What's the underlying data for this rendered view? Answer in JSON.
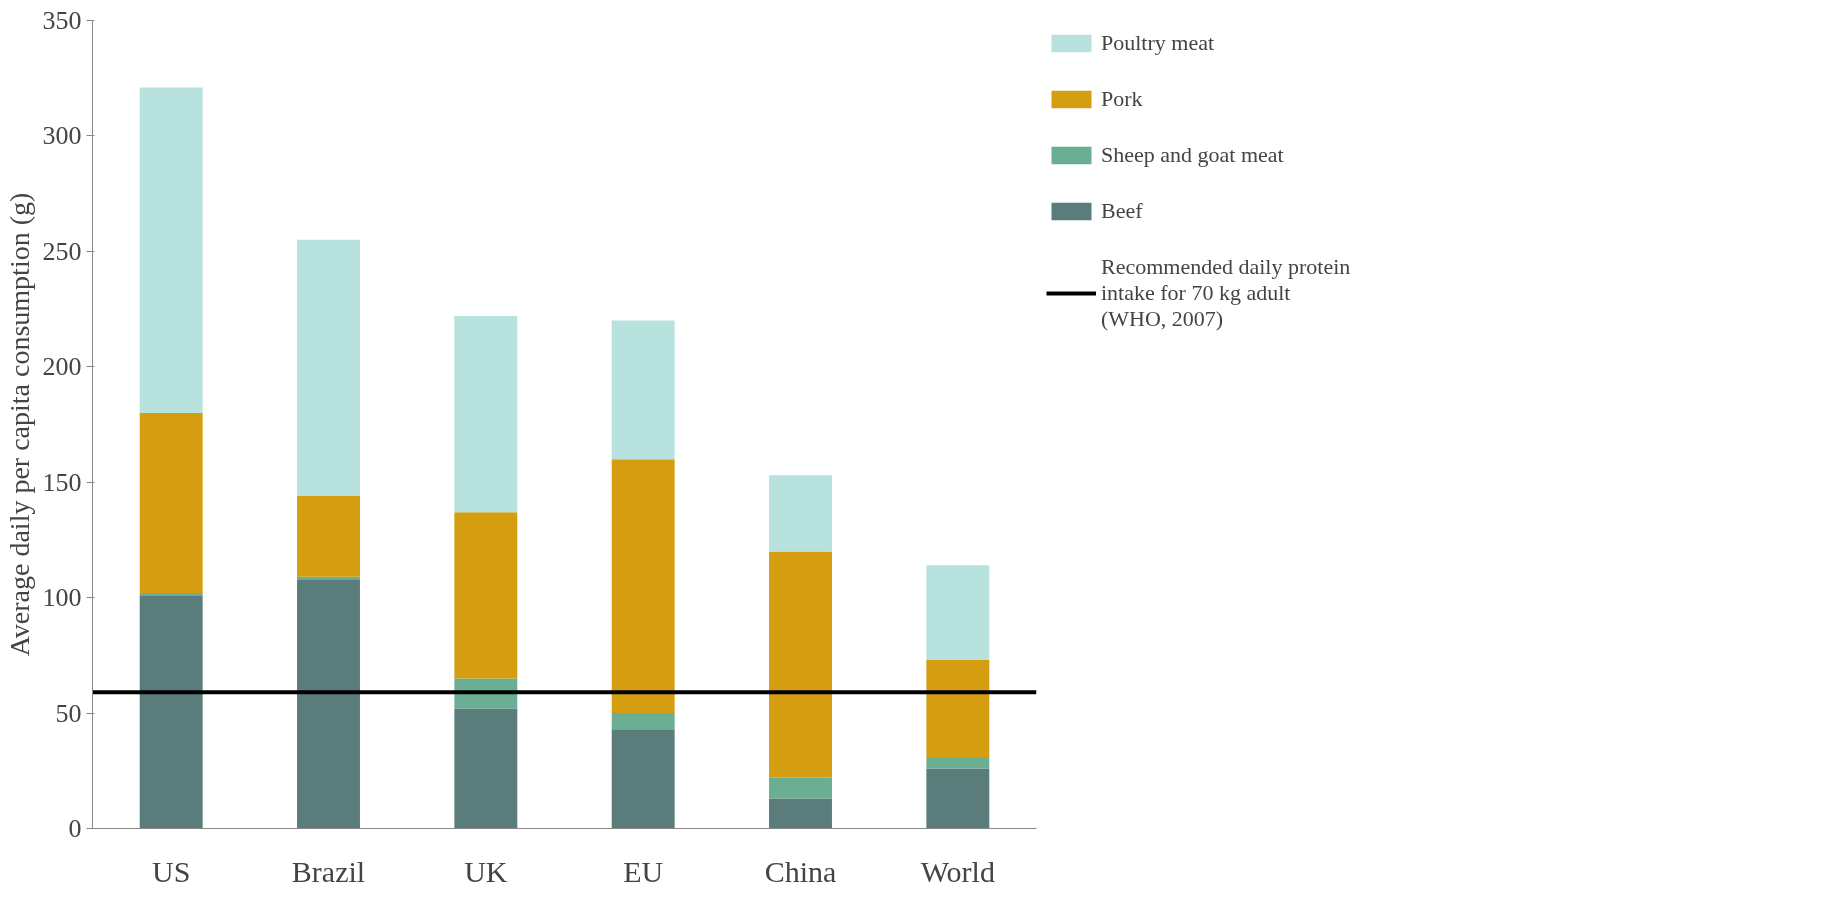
{
  "chart_data": {
    "type": "bar",
    "stacked": true,
    "ylabel": "Average daily per capita consumption (g)",
    "categories": [
      "US",
      "Brazil",
      "UK",
      "EU",
      "China",
      "World"
    ],
    "series": [
      {
        "name": "Beef",
        "color": "#5a7d7c",
        "values": [
          101,
          108,
          52,
          43,
          13,
          26
        ]
      },
      {
        "name": "Sheep and goat meat",
        "color": "#6aae94",
        "values": [
          1,
          1,
          13,
          7,
          9,
          5
        ]
      },
      {
        "name": "Pork",
        "color": "#d49e10",
        "values": [
          78,
          35,
          72,
          110,
          98,
          42
        ]
      },
      {
        "name": "Poultry meat",
        "color": "#b8e2dd",
        "values": [
          141,
          111,
          85,
          60,
          33,
          41
        ]
      }
    ],
    "ref_lines": [
      {
        "axis": "y",
        "value": 59,
        "label": "Recommended daily protein intake for 70 kg adult (WHO, 2007)",
        "color": "#000000",
        "line_style": "solid"
      }
    ],
    "ylim": [
      0,
      350
    ],
    "yticks": [
      0,
      50,
      100,
      150,
      200,
      250,
      300,
      350
    ],
    "grid": false,
    "legend": "right"
  }
}
